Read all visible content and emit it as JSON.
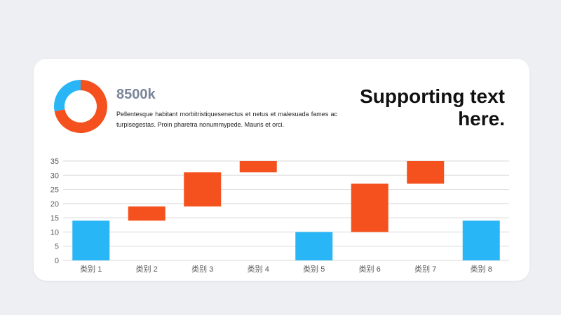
{
  "summary": {
    "value": "8500k",
    "description": "Pellentesque habitant morbitristiquesenectus et netus et malesuada fames ac turpisegestas. Proin pharetra nonummypede.  Mauris et orci.",
    "supporting_text": "Supporting text here."
  },
  "donut_data": {
    "type": "pie",
    "values": [
      0.72,
      0.28
    ],
    "colors": [
      "#f4511e",
      "#29b6f6"
    ]
  },
  "chart_data": {
    "type": "bar",
    "subtype": "waterfall",
    "categories": [
      "类别 1",
      "类别 2",
      "类别 3",
      "类别 4",
      "类别 5",
      "类别 6",
      "类别 7",
      "类别 8"
    ],
    "series": [
      {
        "bars": [
          {
            "base": 0,
            "top": 14,
            "kind": "total"
          },
          {
            "base": 14,
            "top": 19,
            "kind": "change"
          },
          {
            "base": 19,
            "top": 31,
            "kind": "change"
          },
          {
            "base": 31,
            "top": 35,
            "kind": "change"
          },
          {
            "base": 0,
            "top": 10,
            "kind": "total"
          },
          {
            "base": 10,
            "top": 27,
            "kind": "change"
          },
          {
            "base": 27,
            "top": 35,
            "kind": "change"
          },
          {
            "base": 0,
            "top": 14,
            "kind": "total"
          }
        ]
      }
    ],
    "yticks": [
      0,
      5,
      10,
      15,
      20,
      25,
      30,
      35
    ],
    "ylim": [
      0,
      35
    ],
    "grid": true,
    "legend": "none",
    "colors": {
      "total": "#29b6f6",
      "change": "#f4511e",
      "grid": "#d9d9d9",
      "tick": "#595959"
    }
  }
}
